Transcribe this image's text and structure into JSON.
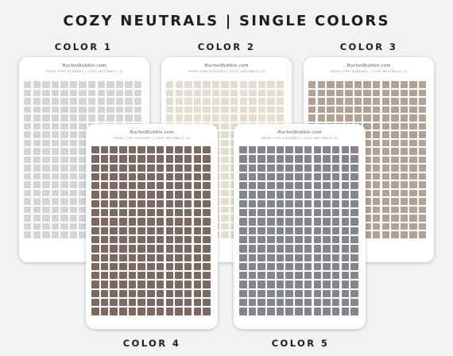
{
  "title": "COZY NEUTRALS | SINGLE COLORS",
  "sheets": [
    {
      "label": "COLOR 1",
      "brand": "RachelBubble.com",
      "subtitle": "TEENY TINY SQUARES | COZY NEUTRALS (1)",
      "color": "#d6d5d4"
    },
    {
      "label": "COLOR 2",
      "brand": "RachelBubble.com",
      "subtitle": "TEENY TINY SQUARES | COZY NEUTRALS (2)",
      "color": "#e6ddd1"
    },
    {
      "label": "COLOR 3",
      "brand": "RachelBubble.com",
      "subtitle": "TEENY TINY SQUARES | COZY NEUTRALS (3)",
      "color": "#b2a195"
    },
    {
      "label": "COLOR 4",
      "brand": "RachelBubble.com",
      "subtitle": "TEENY TINY SQUARES | COZY NEUTRALS (4)",
      "color": "#7c6a61"
    },
    {
      "label": "COLOR 5",
      "brand": "RachelBubble.com",
      "subtitle": "TEENY TINY SQUARES | COZY NEUTRALS (5)",
      "color": "#84868d"
    }
  ]
}
